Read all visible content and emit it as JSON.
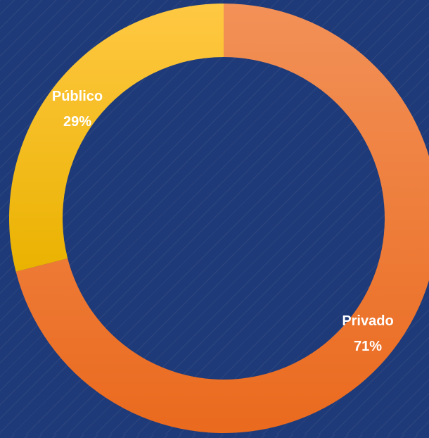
{
  "chart_data": {
    "type": "pie",
    "variant": "donut",
    "categories": [
      "Privado",
      "Público"
    ],
    "values": [
      71,
      29
    ],
    "labels": [
      "71%",
      "29%"
    ],
    "colors": [
      "#ef7425",
      "#f5bb16"
    ],
    "start": "top, clockwise",
    "title": ""
  }
}
